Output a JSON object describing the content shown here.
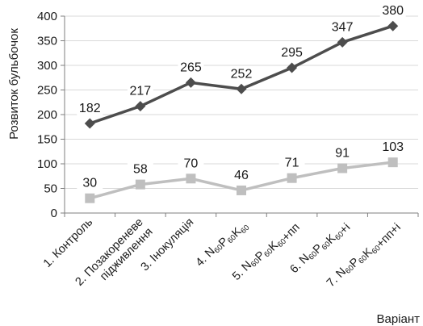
{
  "chart_data": {
    "type": "line",
    "xlabel": "Варіант",
    "ylabel": "Розвиток бульбочок",
    "ylim": [
      0,
      400
    ],
    "yticks": [
      0,
      50,
      100,
      150,
      200,
      250,
      300,
      350,
      400
    ],
    "grid": true,
    "categories": [
      "1. Контроль",
      "2. Позакореневе підживлення",
      "3. Інокуляція",
      "4. N60P60K60",
      "5. N60P60K60+пп",
      "6. N60P60K60+і",
      "7. N60P60K60+пп+і"
    ],
    "category_lines": [
      [
        {
          "t": "1. Контроль"
        }
      ],
      [
        {
          "t": "2. Позакореневе"
        }
      ],
      [
        {
          "t": "3. Інокуляція"
        }
      ],
      [
        {
          "t": "4. N"
        },
        {
          "t": "60",
          "sub": true
        },
        {
          "t": "P"
        },
        {
          "t": "60",
          "sub": true
        },
        {
          "t": "K"
        },
        {
          "t": "60",
          "sub": true
        }
      ],
      [
        {
          "t": "5. N"
        },
        {
          "t": "60",
          "sub": true
        },
        {
          "t": "P"
        },
        {
          "t": "60",
          "sub": true
        },
        {
          "t": "K"
        },
        {
          "t": "60",
          "sub": true
        },
        {
          "t": "+пп"
        }
      ],
      [
        {
          "t": "6. N"
        },
        {
          "t": "60",
          "sub": true
        },
        {
          "t": "P"
        },
        {
          "t": "60",
          "sub": true
        },
        {
          "t": "K"
        },
        {
          "t": "60",
          "sub": true
        },
        {
          "t": "+і"
        }
      ],
      [
        {
          "t": "7. N"
        },
        {
          "t": "60",
          "sub": true
        },
        {
          "t": "P"
        },
        {
          "t": "60",
          "sub": true
        },
        {
          "t": "K"
        },
        {
          "t": "60",
          "sub": true
        },
        {
          "t": "+пп+і"
        }
      ]
    ],
    "category_second_line": [
      "",
      "підживлення",
      "",
      "",
      "",
      "",
      ""
    ],
    "series": [
      {
        "values": [
          182,
          217,
          265,
          252,
          295,
          347,
          380
        ],
        "color": "#4d4d4d",
        "marker": "diamond"
      },
      {
        "values": [
          30,
          58,
          70,
          46,
          71,
          91,
          103
        ],
        "color": "#bfbfbf",
        "marker": "square"
      }
    ]
  }
}
